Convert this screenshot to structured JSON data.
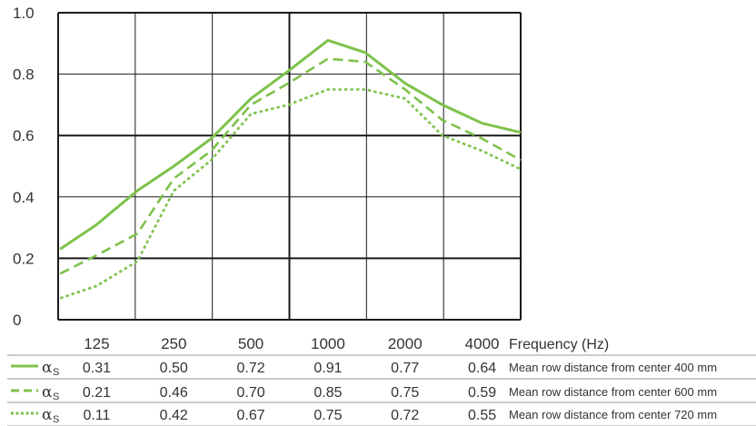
{
  "chart_data": {
    "type": "line",
    "x_ticks": [
      "125",
      "250",
      "500",
      "1000",
      "2000",
      "4000"
    ],
    "xlabel": "Frequency (Hz)",
    "y_ticks": [
      "0",
      "0.2",
      "0.4",
      "0.6",
      "0.8",
      "1.0"
    ],
    "ylim": [
      0,
      1.0
    ],
    "colors": {
      "series": "#7dc24b",
      "grid": "#1a1a1a"
    },
    "series": [
      {
        "symbol": "α",
        "subscript": "S",
        "line_style": "solid",
        "points": [
          [
            90,
            0.23
          ],
          [
            125,
            0.31
          ],
          [
            180,
            0.42
          ],
          [
            250,
            0.5
          ],
          [
            350,
            0.59
          ],
          [
            500,
            0.72
          ],
          [
            700,
            0.81
          ],
          [
            1000,
            0.91
          ],
          [
            1400,
            0.87
          ],
          [
            2000,
            0.77
          ],
          [
            2800,
            0.7
          ],
          [
            4000,
            0.64
          ],
          [
            5700,
            0.61
          ]
        ],
        "values": [
          "0.31",
          "0.50",
          "0.72",
          "0.91",
          "0.77",
          "0.64"
        ],
        "description": "Mean row distance from center 400 mm"
      },
      {
        "symbol": "α",
        "subscript": "S",
        "line_style": "dashed",
        "points": [
          [
            90,
            0.15
          ],
          [
            125,
            0.21
          ],
          [
            180,
            0.28
          ],
          [
            250,
            0.46
          ],
          [
            350,
            0.55
          ],
          [
            500,
            0.7
          ],
          [
            700,
            0.77
          ],
          [
            1000,
            0.85
          ],
          [
            1400,
            0.84
          ],
          [
            2000,
            0.75
          ],
          [
            2800,
            0.65
          ],
          [
            4000,
            0.59
          ],
          [
            5700,
            0.52
          ]
        ],
        "values": [
          "0.21",
          "0.46",
          "0.70",
          "0.85",
          "0.75",
          "0.59"
        ],
        "description": "Mean row distance from center 600 mm"
      },
      {
        "symbol": "α",
        "subscript": "S",
        "line_style": "dotted",
        "points": [
          [
            90,
            0.07
          ],
          [
            125,
            0.11
          ],
          [
            180,
            0.19
          ],
          [
            250,
            0.42
          ],
          [
            350,
            0.52
          ],
          [
            500,
            0.67
          ],
          [
            700,
            0.7
          ],
          [
            1000,
            0.75
          ],
          [
            1400,
            0.75
          ],
          [
            2000,
            0.72
          ],
          [
            2800,
            0.6
          ],
          [
            4000,
            0.55
          ],
          [
            5700,
            0.49
          ]
        ],
        "values": [
          "0.11",
          "0.42",
          "0.67",
          "0.75",
          "0.72",
          "0.55"
        ],
        "description": "Mean row distance from center 720 mm"
      }
    ]
  }
}
